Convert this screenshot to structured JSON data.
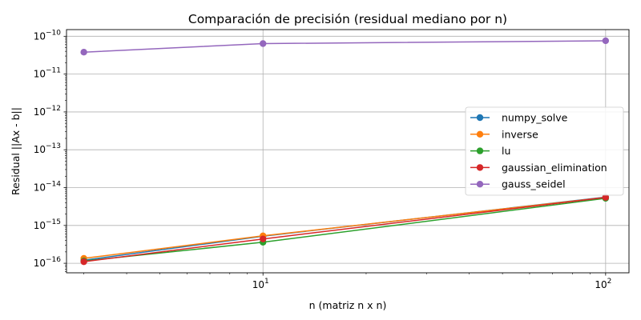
{
  "chart_data": {
    "type": "line",
    "title": "Comparación de precisión (residual mediano por n)",
    "xlabel": "n (matriz n x n)",
    "ylabel": "Residual ||Ax - b||",
    "x_scale": "log",
    "y_scale": "log",
    "xlim": [
      2.67,
      117
    ],
    "ylim": [
      5.6e-17,
      1.5e-10
    ],
    "x_ticks": [
      {
        "value": 10,
        "base": "10",
        "exp": "1"
      },
      {
        "value": 100,
        "base": "10",
        "exp": "2"
      }
    ],
    "y_ticks": [
      {
        "value": 1e-16,
        "base": "10",
        "exp": "−16"
      },
      {
        "value": 1e-15,
        "base": "10",
        "exp": "−15"
      },
      {
        "value": 1e-14,
        "base": "10",
        "exp": "−14"
      },
      {
        "value": 1e-13,
        "base": "10",
        "exp": "−13"
      },
      {
        "value": 1e-12,
        "base": "10",
        "exp": "−12"
      },
      {
        "value": 1e-11,
        "base": "10",
        "exp": "−11"
      },
      {
        "value": 1e-10,
        "base": "10",
        "exp": "−10"
      }
    ],
    "grid": true,
    "legend_position": "center-right",
    "series": [
      {
        "name": "numpy_solve",
        "color": "#1f77b4",
        "x": [
          3,
          10,
          100
        ],
        "y": [
          1.2e-16,
          5.2e-16,
          5.6e-15
        ]
      },
      {
        "name": "inverse",
        "color": "#ff7f0e",
        "x": [
          3,
          10,
          100
        ],
        "y": [
          1.35e-16,
          5.3e-16,
          5.5e-15
        ]
      },
      {
        "name": "lu",
        "color": "#2ca02c",
        "x": [
          3,
          10,
          100
        ],
        "y": [
          1.15e-16,
          3.6e-16,
          5.2e-15
        ]
      },
      {
        "name": "gaussian_elimination",
        "color": "#d62728",
        "x": [
          3,
          10,
          100
        ],
        "y": [
          1.1e-16,
          4.4e-16,
          5.5e-15
        ]
      },
      {
        "name": "gauss_seidel",
        "color": "#9467bd",
        "x": [
          3,
          10,
          100
        ],
        "y": [
          3.8e-11,
          6.4e-11,
          7.6e-11
        ]
      }
    ]
  }
}
